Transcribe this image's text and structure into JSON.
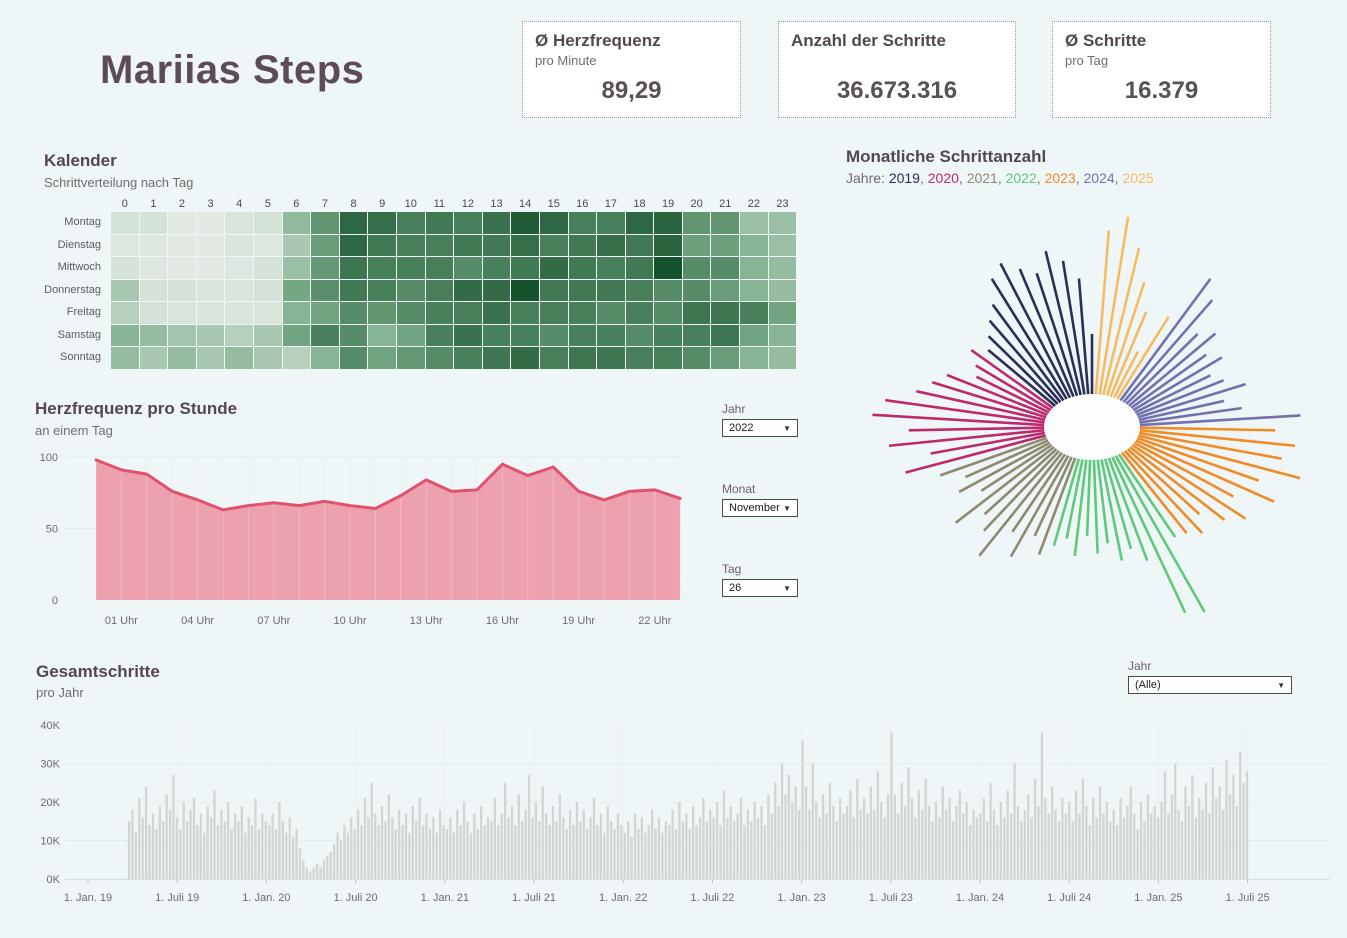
{
  "page": {
    "title": "Mariias Steps",
    "background": "#eff6f8"
  },
  "kpis": [
    {
      "title": "Ø Herzfrequenz",
      "subtitle": "pro Minute",
      "value": "89,29"
    },
    {
      "title": "Anzahl der Schritte",
      "subtitle": "",
      "value": "36.673.316"
    },
    {
      "title": "Ø Schritte",
      "subtitle": "pro Tag",
      "value": "16.379"
    }
  ],
  "filters": {
    "jahr": {
      "label": "Jahr",
      "value": "2022"
    },
    "monat": {
      "label": "Monat",
      "value": "November"
    },
    "tag": {
      "label": "Tag",
      "value": "26"
    },
    "jahr_alle": {
      "label": "Jahr",
      "value": "(Alle)"
    }
  },
  "chart_data": [
    {
      "id": "kalender",
      "type": "heatmap",
      "title": "Kalender",
      "subtitle": "Schrittverteilung nach Tag",
      "columns": [
        "0",
        "1",
        "2",
        "3",
        "4",
        "5",
        "6",
        "7",
        "8",
        "9",
        "10",
        "11",
        "12",
        "13",
        "14",
        "15",
        "16",
        "17",
        "18",
        "19",
        "20",
        "21",
        "22",
        "23"
      ],
      "rows": [
        "Montag",
        "Dienstag",
        "Mittwoch",
        "Donnerstag",
        "Freitag",
        "Samstag",
        "Sonntag"
      ],
      "color_low": "#f1f3f0",
      "color_mid": "#79ab87",
      "color_high": "#16522d",
      "values": [
        [
          0.12,
          0.12,
          0.06,
          0.06,
          0.1,
          0.12,
          0.4,
          0.62,
          0.88,
          0.84,
          0.74,
          0.78,
          0.74,
          0.82,
          0.95,
          0.88,
          0.74,
          0.74,
          0.88,
          0.9,
          0.62,
          0.62,
          0.36,
          0.36
        ],
        [
          0.08,
          0.08,
          0.06,
          0.06,
          0.1,
          0.08,
          0.3,
          0.58,
          0.88,
          0.78,
          0.74,
          0.75,
          0.78,
          0.78,
          0.84,
          0.74,
          0.78,
          0.84,
          0.78,
          0.9,
          0.56,
          0.56,
          0.44,
          0.36
        ],
        [
          0.12,
          0.08,
          0.06,
          0.06,
          0.08,
          0.12,
          0.36,
          0.6,
          0.8,
          0.74,
          0.74,
          0.75,
          0.68,
          0.74,
          0.78,
          0.86,
          0.78,
          0.74,
          0.78,
          1.0,
          0.68,
          0.68,
          0.44,
          0.38
        ],
        [
          0.3,
          0.12,
          0.12,
          0.1,
          0.1,
          0.12,
          0.52,
          0.66,
          0.78,
          0.74,
          0.68,
          0.75,
          0.86,
          0.86,
          1.0,
          0.78,
          0.78,
          0.78,
          0.74,
          0.68,
          0.68,
          0.58,
          0.44,
          0.38
        ],
        [
          0.24,
          0.12,
          0.1,
          0.1,
          0.1,
          0.1,
          0.44,
          0.54,
          0.68,
          0.62,
          0.68,
          0.74,
          0.75,
          0.82,
          0.74,
          0.75,
          0.74,
          0.68,
          0.74,
          0.68,
          0.8,
          0.8,
          0.74,
          0.54
        ],
        [
          0.44,
          0.38,
          0.32,
          0.3,
          0.24,
          0.3,
          0.54,
          0.74,
          0.68,
          0.44,
          0.54,
          0.74,
          0.82,
          0.74,
          0.74,
          0.68,
          0.74,
          0.74,
          0.68,
          0.74,
          0.74,
          0.8,
          0.54,
          0.44
        ],
        [
          0.38,
          0.3,
          0.38,
          0.3,
          0.38,
          0.3,
          0.24,
          0.44,
          0.68,
          0.54,
          0.6,
          0.68,
          0.74,
          0.8,
          0.86,
          0.74,
          0.8,
          0.8,
          0.74,
          0.74,
          0.68,
          0.58,
          0.44,
          0.38
        ]
      ]
    },
    {
      "id": "herzfrequenz",
      "type": "area",
      "title": "Herzfrequenz pro Stunde",
      "subtitle": "an einem Tag",
      "x_hours": [
        0,
        1,
        2,
        3,
        4,
        5,
        6,
        7,
        8,
        9,
        10,
        11,
        12,
        13,
        14,
        15,
        16,
        17,
        18,
        19,
        20,
        21,
        22,
        23
      ],
      "values": [
        98,
        91,
        88,
        76,
        70,
        63,
        66,
        68,
        66,
        69,
        66,
        64,
        73,
        84,
        76,
        77,
        95,
        87,
        93,
        76,
        70,
        76,
        77,
        71
      ],
      "x_ticks": [
        {
          "h": 1,
          "label": "01 Uhr"
        },
        {
          "h": 4,
          "label": "04 Uhr"
        },
        {
          "h": 7,
          "label": "07 Uhr"
        },
        {
          "h": 10,
          "label": "10 Uhr"
        },
        {
          "h": 13,
          "label": "13 Uhr"
        },
        {
          "h": 16,
          "label": "16 Uhr"
        },
        {
          "h": 19,
          "label": "19 Uhr"
        },
        {
          "h": 22,
          "label": "22 Uhr"
        }
      ],
      "y_ticks": [
        0,
        50,
        100
      ],
      "ylim": [
        0,
        105
      ],
      "line_color": "#e0536f",
      "fill_color": "#eda0ae"
    },
    {
      "id": "monatliche",
      "type": "radial-bar",
      "title": "Monatliche Schrittanzahl",
      "legend_prefix": "Jahre:",
      "months_order": "Jan 2019 at top, chronological counter-clockwise, one spoke per month through Juli 2025",
      "series": [
        {
          "name": "2019",
          "color": "#2a2f55",
          "values": [
            0.25,
            0.6,
            0.72,
            0.8,
            0.68,
            0.74,
            0.82,
            0.76,
            0.62,
            0.55,
            0.48,
            0.42
          ]
        },
        {
          "name": "2020",
          "color": "#bd2a6b",
          "values": [
            0.5,
            0.42,
            0.38,
            0.55,
            0.62,
            0.7,
            0.88,
            0.95,
            0.72,
            0.85,
            0.6,
            0.78
          ]
        },
        {
          "name": "2021",
          "color": "#8d8a70",
          "values": [
            0.58,
            0.44,
            0.52,
            0.4,
            0.65,
            0.48,
            0.56,
            0.7,
            0.46,
            0.6,
            0.42,
            0.52
          ]
        },
        {
          "name": "2022",
          "color": "#5fc87b",
          "values": [
            0.44,
            0.38,
            0.48,
            0.35,
            0.46,
            0.4,
            0.52,
            0.46,
            0.56,
            0.95,
            1.0,
            0.5
          ]
        },
        {
          "name": "2023",
          "color": "#f08b26",
          "values": [
            0.52,
            0.58,
            0.48,
            0.62,
            0.72,
            0.58,
            0.82,
            0.68,
            0.92,
            0.78,
            0.85,
            0.72
          ]
        },
        {
          "name": "2024",
          "color": "#7370b0",
          "values": [
            0.88,
            0.52,
            0.42,
            0.58,
            0.46,
            0.4,
            0.52,
            0.45,
            0.58,
            0.5,
            0.72,
            0.82
          ]
        },
        {
          "name": "2025",
          "color": "#f6bb61",
          "values": [
            0.48,
            0.2,
            0.45,
            0.62,
            0.82,
            1.0,
            0.9
          ]
        }
      ]
    },
    {
      "id": "gesamtschritte",
      "type": "bar",
      "title": "Gesamtschritte",
      "subtitle": "pro Jahr",
      "y_ticks": [
        "0K",
        "10K",
        "20K",
        "30K",
        "40K"
      ],
      "ylim_k": [
        0,
        40
      ],
      "x_ticks": [
        "1. Jan. 19",
        "1. Juli 19",
        "1. Jan. 20",
        "1. Juli 20",
        "1. Jan. 21",
        "1. Juli 21",
        "1. Jan. 22",
        "1. Juli 22",
        "1. Jan. 23",
        "1. Juli 23",
        "1. Jan. 24",
        "1. Juli 24",
        "1. Jan. 25",
        "1. Juli 25"
      ],
      "bar_color": "#d2d5d3",
      "sampling": "weekly average daily steps (thousands), week 0 = 1. Jan. 2019",
      "weekly_values_k": [
        0,
        0,
        0,
        0,
        0,
        0,
        0,
        0,
        0,
        0,
        0,
        0,
        15,
        18,
        12,
        21,
        16,
        24,
        14,
        17,
        13,
        19,
        15,
        22,
        18,
        27,
        16,
        13,
        20,
        15,
        18,
        21,
        14,
        17,
        12,
        19,
        16,
        23,
        14,
        18,
        15,
        20,
        13,
        17,
        15,
        19,
        12,
        16,
        14,
        21,
        13,
        17,
        15,
        14,
        17,
        13,
        20,
        15,
        12,
        16,
        11,
        13,
        8,
        5,
        3,
        2,
        3,
        4,
        3,
        5,
        6,
        7,
        9,
        12,
        10,
        14,
        12,
        16,
        13,
        18,
        14,
        21,
        16,
        25,
        17,
        14,
        19,
        15,
        22,
        16,
        13,
        18,
        14,
        17,
        12,
        19,
        15,
        21,
        14,
        17,
        13,
        16,
        12,
        18,
        14,
        13,
        16,
        12,
        18,
        14,
        20,
        15,
        12,
        17,
        13,
        19,
        14,
        16,
        15,
        21,
        14,
        17,
        25,
        16,
        19,
        14,
        22,
        15,
        18,
        27,
        16,
        20,
        15,
        24,
        17,
        14,
        19,
        15,
        22,
        16,
        13,
        18,
        14,
        20,
        15,
        18,
        13,
        16,
        21,
        14,
        17,
        12,
        19,
        15,
        13,
        17,
        14,
        12,
        15,
        11,
        17,
        13,
        16,
        12,
        14,
        18,
        13,
        16,
        12,
        15,
        14,
        18,
        13,
        20,
        15,
        17,
        13,
        19,
        14,
        16,
        21,
        15,
        18,
        16,
        20,
        14,
        23,
        16,
        19,
        15,
        17,
        21,
        14,
        18,
        15,
        20,
        16,
        19,
        14,
        22,
        17,
        25,
        19,
        30,
        22,
        27,
        20,
        24,
        18,
        36,
        24,
        18,
        30,
        20,
        16,
        22,
        17,
        25,
        19,
        15,
        21,
        17,
        19,
        23,
        16,
        26,
        18,
        21,
        17,
        24,
        18,
        28,
        20,
        16,
        22,
        38,
        22,
        17,
        25,
        19,
        29,
        21,
        16,
        23,
        18,
        26,
        19,
        15,
        20,
        16,
        24,
        18,
        21,
        15,
        19,
        23,
        17,
        20,
        14,
        18,
        16,
        17,
        21,
        15,
        25,
        18,
        14,
        20,
        16,
        23,
        17,
        30,
        19,
        15,
        18,
        22,
        16,
        26,
        19,
        38,
        21,
        17,
        24,
        18,
        15,
        21,
        17,
        20,
        15,
        23,
        17,
        26,
        19,
        14,
        21,
        16,
        24,
        17,
        20,
        15,
        18,
        14,
        21,
        16,
        19,
        24,
        17,
        13,
        20,
        15,
        22,
        17,
        19,
        16,
        20,
        28,
        17,
        22,
        30,
        18,
        15,
        24,
        19,
        27,
        16,
        21,
        18,
        25,
        17,
        29,
        21,
        24,
        18,
        31,
        22,
        27,
        19,
        33,
        25,
        28
      ]
    }
  ]
}
